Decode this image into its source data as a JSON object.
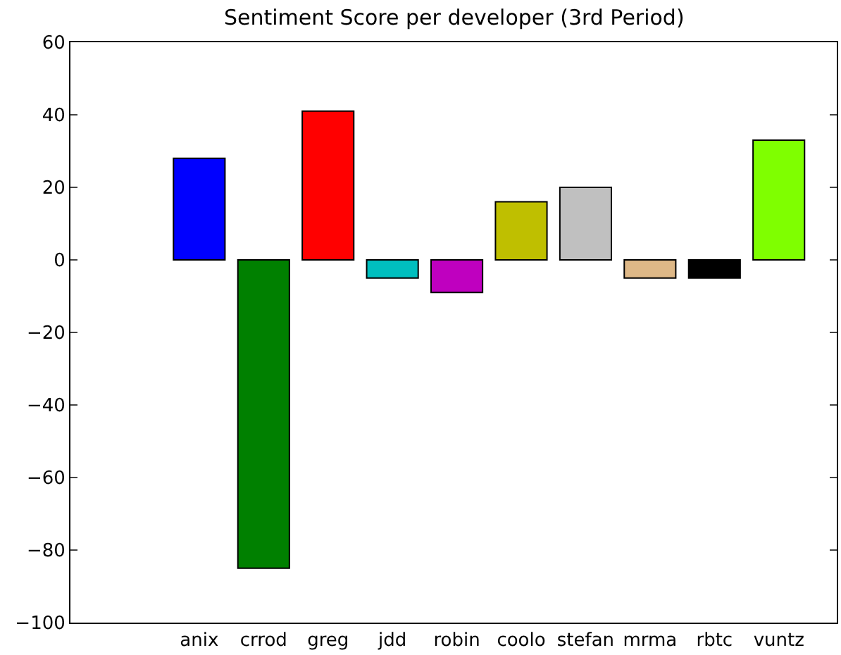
{
  "chart_data": {
    "type": "bar",
    "title": "Sentiment Score per developer (3rd Period)",
    "categories": [
      "anix",
      "crrod",
      "greg",
      "jdd",
      "robin",
      "coolo",
      "stefan",
      "mrma",
      "rbtc",
      "vuntz"
    ],
    "values": [
      28,
      -85,
      41,
      -5,
      -9,
      16,
      20,
      -5,
      -5,
      33
    ],
    "colors": [
      "#0000ff",
      "#008000",
      "#ff0000",
      "#00bfbf",
      "#bf00bf",
      "#bfbf00",
      "#c0c0c0",
      "#deb887",
      "#000000",
      "#7fff00"
    ],
    "ylim": [
      -100,
      60
    ],
    "yticks": [
      -100,
      -80,
      -60,
      -40,
      -20,
      0,
      20,
      40,
      60
    ]
  }
}
